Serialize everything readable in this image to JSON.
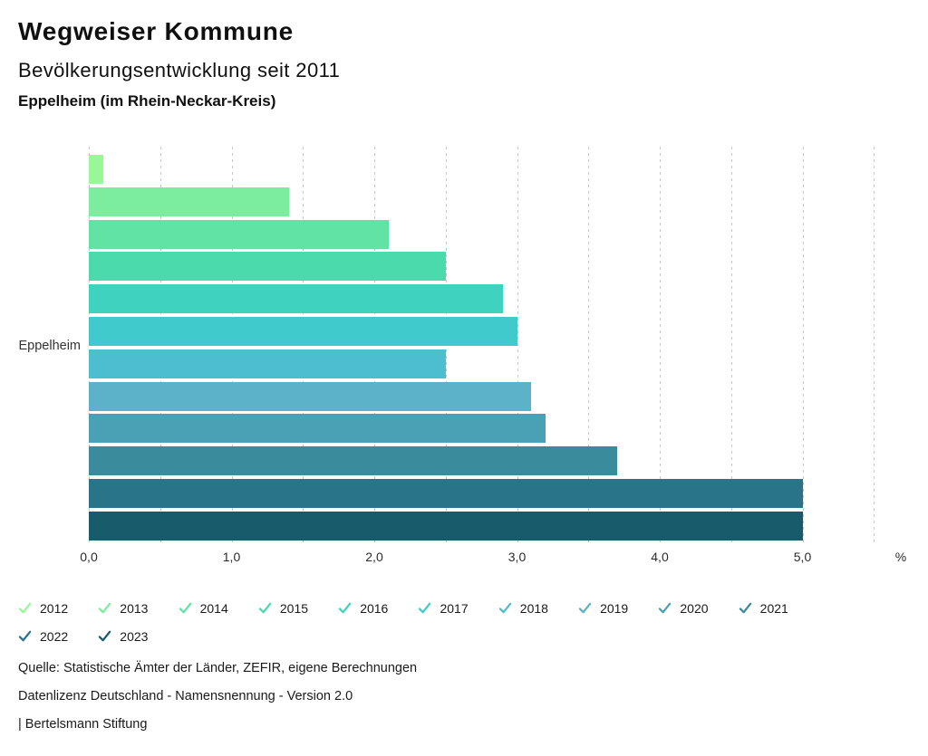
{
  "header": {
    "title": "Wegweiser Kommune",
    "subtitle": "Bevölkerungsentwicklung seit 2011",
    "location": "Eppelheim (im Rhein-Neckar-Kreis)"
  },
  "chart_data": {
    "type": "bar",
    "orientation": "horizontal",
    "title": "Bevölkerungsentwicklung seit 2011",
    "group_label": "Eppelheim",
    "categories": [
      "2012",
      "2013",
      "2014",
      "2015",
      "2016",
      "2017",
      "2018",
      "2019",
      "2020",
      "2021",
      "2022",
      "2023"
    ],
    "values": [
      0.1,
      1.4,
      2.1,
      2.5,
      2.9,
      3.0,
      2.5,
      3.1,
      3.2,
      3.7,
      5.0,
      5.0
    ],
    "colors": [
      "#98F797",
      "#7CEC9F",
      "#60E3A4",
      "#4ADAAB",
      "#3FD2BE",
      "#41CACC",
      "#4CBECF",
      "#5CB2C8",
      "#4AA0B5",
      "#3A8B9B",
      "#297488",
      "#185C6C"
    ],
    "xlabel": "%",
    "xlim": [
      0,
      5.5
    ],
    "grid_step": 0.5,
    "x_tick_step": 1.0,
    "x_tick_labels": [
      "0,0",
      "1,0",
      "2,0",
      "3,0",
      "4,0",
      "5,0"
    ],
    "grid": "dashed-vertical",
    "legend_position": "bottom",
    "legend_icon": "check-icon"
  },
  "footer": {
    "source": "Quelle: Statistische Ämter der Länder, ZEFIR, eigene Berechnungen",
    "license": "Datenlizenz Deutschland - Namensnennung - Version 2.0",
    "attribution": "| Bertelsmann Stiftung"
  }
}
